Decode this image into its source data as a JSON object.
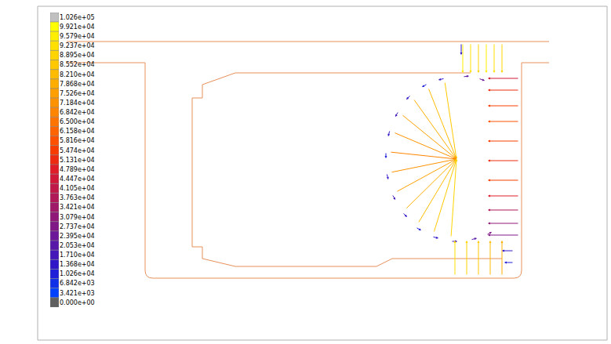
{
  "chart_data": {
    "type": "vector_field",
    "xlim": [
      80,
      705
    ],
    "ylim": [
      360,
      45
    ],
    "tick_labels": false,
    "grid": false,
    "vectors": {
      "x": [
        567,
        546,
        527,
        512,
        502,
        497,
        498,
        505,
        517,
        533,
        553,
        575,
        567,
        545,
        524,
        508,
        497,
        492,
        493,
        500,
        513,
        530,
        551,
        575,
        590,
        610,
        600,
        620,
        590,
        600,
        610,
        620,
        630,
        640,
        588,
        580,
        595,
        610,
        625,
        640,
        662,
        662,
        662,
        662,
        662,
        662,
        662,
        662,
        662,
        662,
        662,
        655,
        655
      ],
      "y": [
        104,
        112,
        126,
        146,
        169,
        194,
        220,
        245,
        267,
        285,
        297,
        303,
        100,
        107,
        121,
        142,
        166,
        194,
        221,
        248,
        271,
        290,
        302,
        308,
        98,
        100,
        306,
        300,
        55,
        55,
        55,
        55,
        55,
        55,
        55,
        352,
        352,
        352,
        352,
        352,
        100,
        115,
        135,
        155,
        180,
        205,
        230,
        250,
        268,
        285,
        300,
        320,
        335
      ],
      "u": [
        15,
        36,
        55,
        70,
        80,
        85,
        84,
        77,
        65,
        49,
        29,
        7,
        -8,
        -7,
        -6,
        -4,
        -2,
        0,
        2,
        4,
        6,
        7,
        8,
        8,
        8,
        8,
        8,
        7,
        0,
        0,
        0,
        0,
        0,
        0,
        0,
        0,
        0,
        0,
        0,
        0,
        -40,
        -40,
        -40,
        -40,
        -40,
        -40,
        -40,
        -40,
        -40,
        -40,
        -40,
        -15,
        -12
      ],
      "v": [
        99,
        91,
        77,
        57,
        34,
        9,
        -17,
        -42,
        -64,
        -82,
        -94,
        -100,
        2,
        4,
        6,
        7,
        8,
        8,
        8,
        7,
        6,
        4,
        2,
        0,
        -1,
        3,
        -2,
        -4,
        38,
        38,
        38,
        38,
        38,
        38,
        15,
        -45,
        -45,
        -45,
        -45,
        -45,
        0,
        0,
        0,
        0,
        0,
        0,
        0,
        0,
        0,
        0,
        0,
        0,
        0
      ],
      "values": [
        85520,
        82100,
        78680,
        75260,
        71840,
        68420,
        71840,
        75260,
        78680,
        82100,
        85520,
        88950,
        13680,
        10260,
        13680,
        17100,
        13680,
        10260,
        13680,
        17100,
        13680,
        10260,
        13680,
        17100,
        20530,
        23950,
        20530,
        27370,
        95790,
        92370,
        88950,
        95790,
        92370,
        88950,
        13680,
        92370,
        88950,
        85520,
        82100,
        78680,
        44470,
        51310,
        54740,
        58160,
        54740,
        51310,
        54740,
        47890,
        37630,
        30790,
        27370,
        13680,
        10260
      ]
    },
    "colorbar": {
      "range": [
        -1711,
        104311
      ],
      "ticks": [
        {
          "value": 102600,
          "label": "1.026e+05"
        },
        {
          "value": 99210,
          "label": "9.921e+04"
        },
        {
          "value": 95790,
          "label": "9.579e+04"
        },
        {
          "value": 92370,
          "label": "9.237e+04"
        },
        {
          "value": 88950,
          "label": "8.895e+04"
        },
        {
          "value": 85520,
          "label": "8.552e+04"
        },
        {
          "value": 82100,
          "label": "8.210e+04"
        },
        {
          "value": 78680,
          "label": "7.868e+04"
        },
        {
          "value": 75260,
          "label": "7.526e+04"
        },
        {
          "value": 71840,
          "label": "7.184e+04"
        },
        {
          "value": 68420,
          "label": "6.842e+04"
        },
        {
          "value": 65000,
          "label": "6.500e+04"
        },
        {
          "value": 61580,
          "label": "6.158e+04"
        },
        {
          "value": 58160,
          "label": "5.816e+04"
        },
        {
          "value": 54740,
          "label": "5.474e+04"
        },
        {
          "value": 51310,
          "label": "5.131e+04"
        },
        {
          "value": 47890,
          "label": "4.789e+04"
        },
        {
          "value": 44470,
          "label": "4.447e+04"
        },
        {
          "value": 41050,
          "label": "4.105e+04"
        },
        {
          "value": 37630,
          "label": "3.763e+04"
        },
        {
          "value": 34210,
          "label": "3.421e+04"
        },
        {
          "value": 30790,
          "label": "3.079e+04"
        },
        {
          "value": 27370,
          "label": "2.737e+04"
        },
        {
          "value": 23950,
          "label": "2.395e+04"
        },
        {
          "value": 20530,
          "label": "2.053e+04"
        },
        {
          "value": 17100,
          "label": "1.710e+04"
        },
        {
          "value": 13680,
          "label": "1.368e+04"
        },
        {
          "value": 10260,
          "label": "1.026e+04"
        },
        {
          "value": 6842,
          "label": "6.842e+03"
        },
        {
          "value": 3421,
          "label": "3.421e+03"
        },
        {
          "value": 0,
          "label": "0.000e+00"
        }
      ],
      "colors": [
        "#c0c0c0",
        "#ffff00",
        "#ffee00",
        "#ffe000",
        "#ffd400",
        "#ffc800",
        "#ffbb00",
        "#ffae00",
        "#ffa000",
        "#ff9200",
        "#ff8400",
        "#ff7400",
        "#ff6400",
        "#ff5000",
        "#f83c00",
        "#ee2a10",
        "#e01c28",
        "#d01838",
        "#c01848",
        "#b01858",
        "#a01868",
        "#901878",
        "#801888",
        "#6c1898",
        "#5818a8",
        "#4418b8",
        "#3018c8",
        "#2020d8",
        "#1030e8",
        "#0040ff",
        "#606060"
      ]
    }
  }
}
